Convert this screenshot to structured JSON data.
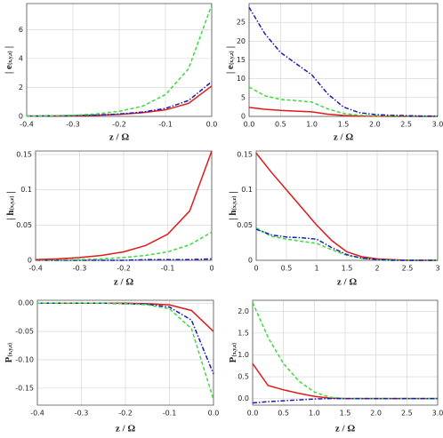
{
  "chart_data": [
    {
      "type": "line",
      "xlabel": "z / Ω",
      "ylabel": {
        "main": "| e",
        "sub": "{x,y,z}",
        "end": " |"
      },
      "x": [
        -0.4,
        -0.35,
        -0.3,
        -0.25,
        -0.2,
        -0.15,
        -0.1,
        -0.05,
        0
      ],
      "xlim": [
        -0.4,
        0
      ],
      "ylim": [
        0,
        7.8
      ],
      "grid": true,
      "xticks": [
        -0.4,
        -0.3,
        -0.2,
        -0.1,
        {
          "value": 0,
          "label": "0.0"
        }
      ],
      "yticks": [
        0,
        2,
        4,
        6
      ],
      "series": [
        {
          "color": "#e01a1a",
          "dash": "solid",
          "values": [
            0.02,
            0.03,
            0.05,
            0.08,
            0.14,
            0.25,
            0.45,
            0.9,
            2.1
          ]
        },
        {
          "color": "#1a1ab8",
          "dash": "dashdot",
          "values": [
            0.02,
            0.03,
            0.05,
            0.09,
            0.16,
            0.3,
            0.55,
            1.1,
            2.4
          ]
        },
        {
          "color": "#3bdc3b",
          "dash": "dashed",
          "values": [
            0.02,
            0.04,
            0.08,
            0.17,
            0.35,
            0.7,
            1.5,
            3.3,
            7.7
          ]
        }
      ]
    },
    {
      "type": "line",
      "xlabel": "z / Ω",
      "ylabel": {
        "main": "| e",
        "sub": "{x,y,z}",
        "end": " |"
      },
      "x": [
        0,
        0.25,
        0.5,
        0.75,
        1,
        1.25,
        1.5,
        1.75,
        2,
        2.25,
        2.5,
        2.75,
        3
      ],
      "xlim": [
        0,
        3
      ],
      "ylim": [
        0,
        30
      ],
      "grid": true,
      "xticks": [
        {
          "value": 0,
          "label": "0.0"
        },
        0.5,
        {
          "value": 1,
          "label": "1.0"
        },
        1.5,
        {
          "value": 2,
          "label": "2.0"
        },
        2.5,
        {
          "value": 3,
          "label": "3.0"
        }
      ],
      "yticks": [
        0,
        5,
        10,
        15,
        20,
        25
      ],
      "series": [
        {
          "color": "#e01a1a",
          "dash": "solid",
          "values": [
            2.4,
            1.9,
            1.6,
            1.4,
            1.2,
            0.6,
            0.25,
            0.1,
            0.05,
            0,
            0,
            0,
            0
          ]
        },
        {
          "color": "#3bdc3b",
          "dash": "dashed",
          "values": [
            7.8,
            5.5,
            4.5,
            4.2,
            3.8,
            2,
            0.8,
            0.3,
            0.15,
            0.1,
            0.05,
            0,
            0
          ]
        },
        {
          "color": "#1a1ab8",
          "dash": "dashdot",
          "values": [
            29,
            22,
            17,
            14,
            11,
            6,
            2.5,
            1,
            0.5,
            0.3,
            0.2,
            0.1,
            0.1
          ]
        }
      ]
    },
    {
      "type": "line",
      "xlabel": "z / Ω",
      "ylabel": {
        "main": "| h",
        "sub": "{x,y,z}",
        "end": " |"
      },
      "x": [
        -0.4,
        -0.35,
        -0.3,
        -0.25,
        -0.2,
        -0.15,
        -0.1,
        -0.05,
        0
      ],
      "xlim": [
        -0.4,
        0
      ],
      "ylim": [
        0,
        0.155
      ],
      "grid": true,
      "xticks": [
        -0.4,
        -0.3,
        -0.2,
        -0.1,
        0
      ],
      "yticks": [
        0,
        0.05,
        0.1,
        0.15
      ],
      "series": [
        {
          "color": "#1a1ab8",
          "dash": "dashdot",
          "values": [
            0,
            0,
            0,
            0,
            0,
            0.001,
            0.001,
            0.001,
            0.002
          ]
        },
        {
          "color": "#3bdc3b",
          "dash": "dashed",
          "values": [
            0,
            0.001,
            0.001,
            0.002,
            0.004,
            0.007,
            0.012,
            0.022,
            0.04
          ]
        },
        {
          "color": "#e01a1a",
          "dash": "solid",
          "values": [
            0.001,
            0.002,
            0.004,
            0.007,
            0.012,
            0.021,
            0.037,
            0.07,
            0.155
          ]
        }
      ]
    },
    {
      "type": "line",
      "xlabel": "z / Ω",
      "ylabel": {
        "main": "| h",
        "sub": "{x,y,z}",
        "end": " |"
      },
      "x": [
        0,
        0.25,
        0.5,
        0.75,
        1,
        1.25,
        1.5,
        1.75,
        2,
        2.25,
        2.5,
        2.75,
        3
      ],
      "xlim": [
        0,
        3
      ],
      "ylim": [
        0,
        0.155
      ],
      "grid": true,
      "xticks": [
        0,
        0.5,
        1,
        1.5,
        2,
        2.5,
        3
      ],
      "yticks": [
        0,
        0.05,
        0.1,
        0.15
      ],
      "series": [
        {
          "color": "#e01a1a",
          "dash": "solid",
          "values": [
            0.152,
            0.125,
            0.1,
            0.075,
            0.05,
            0.028,
            0.012,
            0.005,
            0.002,
            0.001,
            0,
            0,
            0
          ]
        },
        {
          "color": "#3bdc3b",
          "dash": "dashed",
          "values": [
            0.046,
            0.034,
            0.03,
            0.027,
            0.024,
            0.015,
            0.007,
            0.003,
            0.001,
            0,
            0,
            0,
            0
          ]
        },
        {
          "color": "#1a1ab8",
          "dash": "dashdot",
          "values": [
            0.044,
            0.036,
            0.033,
            0.032,
            0.03,
            0.018,
            0.008,
            0.003,
            0.001,
            0,
            0,
            0,
            0
          ]
        }
      ]
    },
    {
      "type": "line",
      "xlabel": "z / Ω",
      "ylabel": {
        "main": "P",
        "sub": "{x,y,z}",
        "end": ""
      },
      "x": [
        -0.4,
        -0.35,
        -0.3,
        -0.25,
        -0.2,
        -0.15,
        -0.1,
        -0.05,
        0
      ],
      "xlim": [
        -0.4,
        0
      ],
      "ylim": [
        -0.18,
        0.005
      ],
      "grid": true,
      "xticks": [
        -0.4,
        -0.3,
        -0.2,
        -0.1,
        {
          "value": 0,
          "label": "0.0"
        }
      ],
      "yticks": [
        {
          "value": 0,
          "label": "0.00"
        },
        -0.05,
        {
          "value": -0.1,
          "label": "-0.10"
        },
        -0.15
      ],
      "series": [
        {
          "color": "#e01a1a",
          "dash": "solid",
          "values": [
            0,
            0,
            0,
            0,
            0,
            -0.001,
            -0.003,
            -0.013,
            -0.05
          ]
        },
        {
          "color": "#1a1ab8",
          "dash": "dashdot",
          "values": [
            0,
            0,
            0,
            0,
            -0.001,
            -0.002,
            -0.007,
            -0.03,
            -0.125
          ]
        },
        {
          "color": "#3bdc3b",
          "dash": "dashed",
          "values": [
            0,
            0,
            0,
            0,
            -0.001,
            -0.003,
            -0.01,
            -0.045,
            -0.17
          ]
        }
      ]
    },
    {
      "type": "line",
      "xlabel": "z / Ω",
      "ylabel": {
        "main": "P",
        "sub": "{x,y,z}",
        "end": ""
      },
      "x": [
        0,
        0.25,
        0.5,
        0.75,
        1,
        1.25,
        1.5,
        1.75,
        2,
        2.25,
        2.5,
        2.75,
        3
      ],
      "xlim": [
        0,
        3
      ],
      "ylim": [
        -0.15,
        2.25
      ],
      "grid": true,
      "xticks": [
        {
          "value": 0,
          "label": "0.0"
        },
        0.5,
        {
          "value": 1,
          "label": "1.0"
        },
        1.5,
        {
          "value": 2,
          "label": "2.0"
        },
        2.5,
        {
          "value": 3,
          "label": "3.0"
        }
      ],
      "yticks": [
        {
          "value": 0,
          "label": "0.0"
        },
        0.5,
        {
          "value": 1,
          "label": "1.0"
        },
        1.5,
        {
          "value": 2,
          "label": "2.0"
        }
      ],
      "series": [
        {
          "color": "#e01a1a",
          "dash": "solid",
          "values": [
            0.8,
            0.3,
            0.2,
            0.12,
            0.05,
            0.01,
            0,
            0,
            0,
            0,
            0,
            0,
            0
          ]
        },
        {
          "color": "#3bdc3b",
          "dash": "dashed",
          "values": [
            2.2,
            1.4,
            0.8,
            0.4,
            0.15,
            0.03,
            0,
            0,
            0,
            0,
            0,
            0,
            0
          ]
        },
        {
          "color": "#1a1ab8",
          "dash": "dashdot",
          "values": [
            -0.1,
            -0.07,
            -0.05,
            -0.03,
            -0.01,
            0,
            0,
            0,
            0,
            0,
            0,
            0,
            0
          ]
        }
      ]
    }
  ]
}
